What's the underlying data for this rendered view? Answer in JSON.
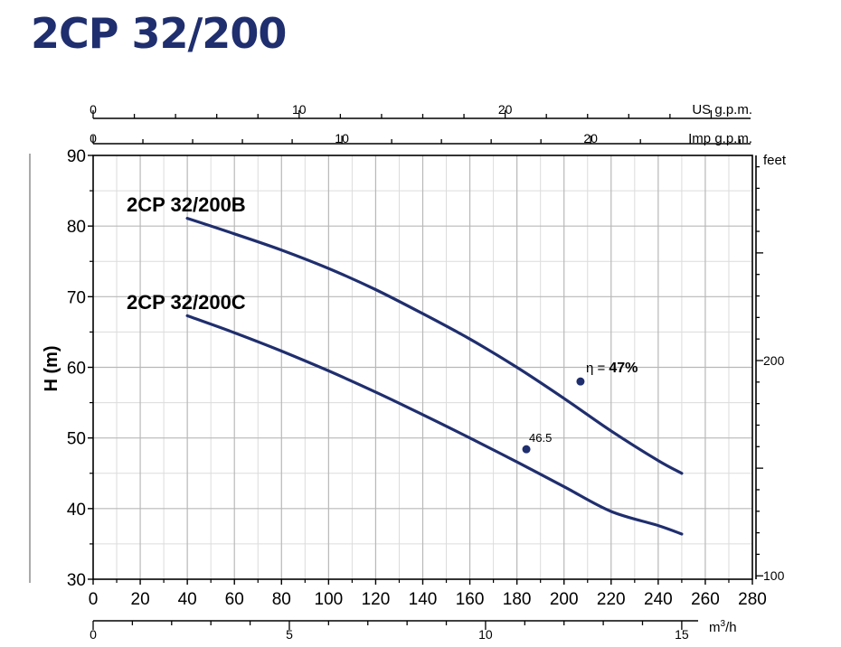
{
  "chart_data": {
    "type": "line",
    "title": "2CP 32/200",
    "xlabel": "",
    "ylabel": "H (m)",
    "xlim": [
      0,
      280
    ],
    "ylim": [
      30,
      90
    ],
    "x_ticks": [
      "0",
      "20",
      "40",
      "60",
      "80",
      "100",
      "120",
      "140",
      "160",
      "180",
      "200",
      "220",
      "240",
      "260",
      "280"
    ],
    "y_ticks": [
      "30",
      "40",
      "50",
      "60",
      "70",
      "80",
      "90"
    ],
    "grid": true,
    "series": [
      {
        "name": "2CP 32/200B",
        "x": [
          40,
          60,
          80,
          100,
          120,
          140,
          160,
          180,
          200,
          220,
          240,
          250
        ],
        "y": [
          81.1,
          78.9,
          76.6,
          74.0,
          71.0,
          67.6,
          64.0,
          60.0,
          55.6,
          51.0,
          46.8,
          45.0
        ]
      },
      {
        "name": "2CP 32/200C",
        "x": [
          40,
          60,
          80,
          100,
          120,
          140,
          160,
          180,
          200,
          220,
          240,
          250
        ],
        "y": [
          67.3,
          64.9,
          62.3,
          59.5,
          56.5,
          53.3,
          50.0,
          46.6,
          43.1,
          39.6,
          37.6,
          36.4
        ]
      }
    ],
    "annotations": [
      {
        "series": "2CP 32/200B",
        "x": 207,
        "y": 58.0,
        "text_prefix": "η = ",
        "text": "47%"
      },
      {
        "series": "2CP 32/200C",
        "x": 184,
        "y": 48.4,
        "text": "46.5"
      }
    ],
    "secondary_axes": {
      "us_gpm": {
        "label": "US g.p.m.",
        "ticks": [
          "0",
          "10",
          "20"
        ],
        "max": 32
      },
      "imp_gpm": {
        "label": "Imp g.p.m.",
        "ticks": [
          "0",
          "10",
          "20"
        ],
        "max": 26.5
      },
      "m3h": {
        "label_main": "m",
        "label_sup": "3",
        "label_end": "/h",
        "ticks": [
          "0",
          "5",
          "10",
          "15"
        ],
        "max": 16.8
      },
      "feet": {
        "label": "feet",
        "ticks": [
          "100",
          "200"
        ],
        "range_m": [
          30,
          90
        ]
      }
    }
  }
}
